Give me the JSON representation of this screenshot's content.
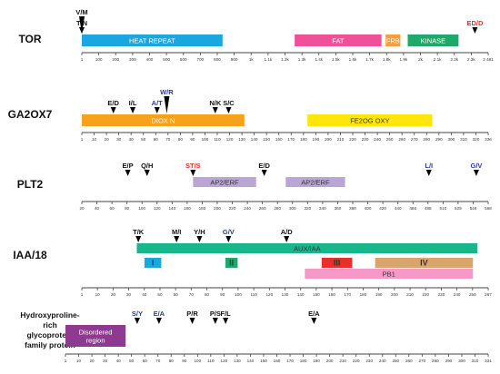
{
  "colors": {
    "tor_heat_repeat": "#1aa7e0",
    "tor_fat": "#f0509a",
    "tor_frb": "#f2a03d",
    "tor_kinase": "#1ea96a",
    "ga2ox7_dioxn": "#f7a21b",
    "ga2ox7_fe2og": "#ffe60a",
    "plt2_ap2": "#b9a6d3",
    "iaa_auxiaa": "#1bb58c",
    "iaa_I": "#1aa7e0",
    "iaa_II": "#1ea96a",
    "iaa_III": "#e8302a",
    "iaa_IV": "#d9a56c",
    "iaa_pb1": "#f59ac8",
    "hrgp_disordered": "#8e3a8e",
    "mut_black": "#111111",
    "mut_red": "#e8302a",
    "mut_blue": "#2a3c99"
  },
  "genes": [
    {
      "id": "tor",
      "label": "TOR",
      "axis_length": 2481,
      "ticks": [
        "1",
        "100",
        "200",
        "300",
        "400",
        "500",
        "600",
        "700",
        "800",
        "900",
        "1k",
        "1.1k",
        "1.2k",
        "1.3k",
        "1.4k",
        "1.5k",
        "1.6k",
        "1.7k",
        "1.8k",
        "1.9k",
        "2k",
        "2.1k",
        "2.2k",
        "2.3k",
        "2 481"
      ],
      "domains": [
        {
          "name": "HEAT REPEAT",
          "start": 1,
          "end": 860,
          "row": 0,
          "color_key": "tor_heat_repeat",
          "text_color": "#ffffff"
        },
        {
          "name": "FAT",
          "start": 1300,
          "end": 1830,
          "row": 0,
          "color_key": "tor_fat",
          "text_color": "#ffffff"
        },
        {
          "name": "FRB",
          "start": 1855,
          "end": 1945,
          "row": 0,
          "color_key": "tor_frb",
          "text_color": "#ffffff"
        },
        {
          "name": "KINASE",
          "start": 1990,
          "end": 2300,
          "row": 0,
          "color_key": "tor_kinase",
          "text_color": "#ffffff"
        }
      ],
      "mutations": [
        {
          "label": "V/M",
          "pos": 1,
          "color": "black",
          "level": 2
        },
        {
          "label": "T/N",
          "pos": 1,
          "color": "black",
          "level": 1
        },
        {
          "label": "ED/D",
          "pos": 2400,
          "color": "red",
          "level": 1
        }
      ]
    },
    {
      "id": "ga2ox7",
      "label": "GA2OX7",
      "axis_length": 336,
      "ticks": [
        "1",
        "10",
        "20",
        "30",
        "40",
        "50",
        "60",
        "70",
        "80",
        "90",
        "100",
        "110",
        "120",
        "130",
        "140",
        "150",
        "160",
        "170",
        "180",
        "190",
        "200",
        "210",
        "220",
        "230",
        "240",
        "250",
        "260",
        "270",
        "280",
        "290",
        "300",
        "310",
        "320",
        "336"
      ],
      "domains": [
        {
          "name": "DIOX N",
          "start": 1,
          "end": 135,
          "row": 0,
          "color_key": "ga2ox7_dioxn",
          "text_color": "#ffffff"
        },
        {
          "name": "FE2OG OXY",
          "start": 187,
          "end": 290,
          "row": 0,
          "color_key": "ga2ox7_fe2og",
          "text_color": "#333333"
        }
      ],
      "mutations": [
        {
          "label": "E/D",
          "pos": 27,
          "color": "black",
          "level": 1
        },
        {
          "label": "I/L",
          "pos": 43,
          "color": "black",
          "level": 1
        },
        {
          "label": "A/T",
          "pos": 63,
          "color": "blue",
          "level": 1
        },
        {
          "label": "W/R",
          "pos": 71,
          "color": "blue",
          "level": 2
        },
        {
          "label": "N/K",
          "pos": 111,
          "color": "black",
          "level": 1
        },
        {
          "label": "S/C",
          "pos": 122,
          "color": "black",
          "level": 1
        }
      ]
    },
    {
      "id": "plt2",
      "label": "PLT2",
      "axis_length": 568,
      "ticks": [
        "20",
        "40",
        "60",
        "80",
        "100",
        "120",
        "140",
        "160",
        "180",
        "200",
        "220",
        "240",
        "260",
        "280",
        "300",
        "320",
        "340",
        "360",
        "380",
        "400",
        "420",
        "440",
        "466",
        "488",
        "510",
        "529",
        "546",
        "568"
      ],
      "tick_start": 20,
      "domains": [
        {
          "name": "AP2/ERF",
          "start": 170,
          "end": 255,
          "row": 0,
          "color_key": "plt2_ap2",
          "text_color": "#333333"
        },
        {
          "name": "AP2/ERF",
          "start": 295,
          "end": 375,
          "row": 0,
          "color_key": "plt2_ap2",
          "text_color": "#333333"
        }
      ],
      "mutations": [
        {
          "label": "E/P",
          "pos": 82,
          "color": "black",
          "level": 1
        },
        {
          "label": "Q/H",
          "pos": 108,
          "color": "black",
          "level": 1
        },
        {
          "label": "ST/S",
          "pos": 170,
          "color": "red",
          "level": 1
        },
        {
          "label": "E/D",
          "pos": 266,
          "color": "black",
          "level": 1
        },
        {
          "label": "L/I",
          "pos": 488,
          "color": "blue",
          "level": 1
        },
        {
          "label": "G/V",
          "pos": 552,
          "color": "blue",
          "level": 1
        }
      ]
    },
    {
      "id": "iaa18",
      "label": "IAA/18",
      "axis_length": 267,
      "ticks": [
        "1",
        "10",
        "20",
        "30",
        "40",
        "50",
        "60",
        "70",
        "80",
        "90",
        "100",
        "110",
        "120",
        "130",
        "140",
        "150",
        "160",
        "170",
        "180",
        "190",
        "200",
        "210",
        "220",
        "230",
        "240",
        "250",
        "267"
      ],
      "domains": [
        {
          "name": "AUX/IAA",
          "start": 37,
          "end": 260,
          "row": 0,
          "color_key": "iaa_auxiaa",
          "text_color": "#333333"
        },
        {
          "name": "I",
          "start": 42,
          "end": 53,
          "row": 1,
          "color_key": "iaa_I",
          "text_color": "#2a3c99"
        },
        {
          "name": "II",
          "start": 95,
          "end": 103,
          "row": 1,
          "color_key": "iaa_II",
          "text_color": "#333333"
        },
        {
          "name": "III",
          "start": 158,
          "end": 178,
          "row": 1,
          "color_key": "iaa_III",
          "text_color": "#333333"
        },
        {
          "name": "IV",
          "start": 193,
          "end": 257,
          "row": 1,
          "color_key": "iaa_IV",
          "text_color": "#333333"
        },
        {
          "name": "PB1",
          "start": 147,
          "end": 257,
          "row": 2,
          "color_key": "iaa_pb1",
          "text_color": "#333333"
        }
      ],
      "mutations": [
        {
          "label": "T/K",
          "pos": 38,
          "color": "black",
          "level": 1
        },
        {
          "label": "M/I",
          "pos": 63,
          "color": "black",
          "level": 1
        },
        {
          "label": "Y/H",
          "pos": 78,
          "color": "black",
          "level": 1
        },
        {
          "label": "G/V",
          "pos": 97,
          "color": "blue",
          "level": 1
        },
        {
          "label": "A/D",
          "pos": 135,
          "color": "black",
          "level": 1
        }
      ]
    },
    {
      "id": "hrgp",
      "label": "Hydroxyproline-\nrich\nglycoprotein\nfamily protein",
      "axis_length": 331,
      "ticks": [
        "1",
        "10",
        "20",
        "30",
        "40",
        "50",
        "60",
        "70",
        "80",
        "90",
        "100",
        "110",
        "120",
        "130",
        "140",
        "150",
        "160",
        "170",
        "180",
        "190",
        "200",
        "210",
        "220",
        "230",
        "240",
        "250",
        "260",
        "270",
        "280",
        "290",
        "300",
        "310",
        "331"
      ],
      "domains": [
        {
          "name": "Disordered\nregion",
          "start": 1,
          "end": 48,
          "row": 0,
          "color_key": "hrgp_disordered",
          "text_color": "#ffffff"
        }
      ],
      "mutations": [
        {
          "label": "S/Y",
          "pos": 57,
          "color": "blue",
          "level": 1
        },
        {
          "label": "E/A",
          "pos": 74,
          "color": "blue",
          "level": 1
        },
        {
          "label": "P/R",
          "pos": 100,
          "color": "black",
          "level": 1
        },
        {
          "label": "P/S",
          "pos": 118,
          "color": "black",
          "level": 1
        },
        {
          "label": "F/L",
          "pos": 126,
          "color": "black",
          "level": 1
        },
        {
          "label": "E/A",
          "pos": 195,
          "color": "black",
          "level": 1
        }
      ]
    }
  ]
}
